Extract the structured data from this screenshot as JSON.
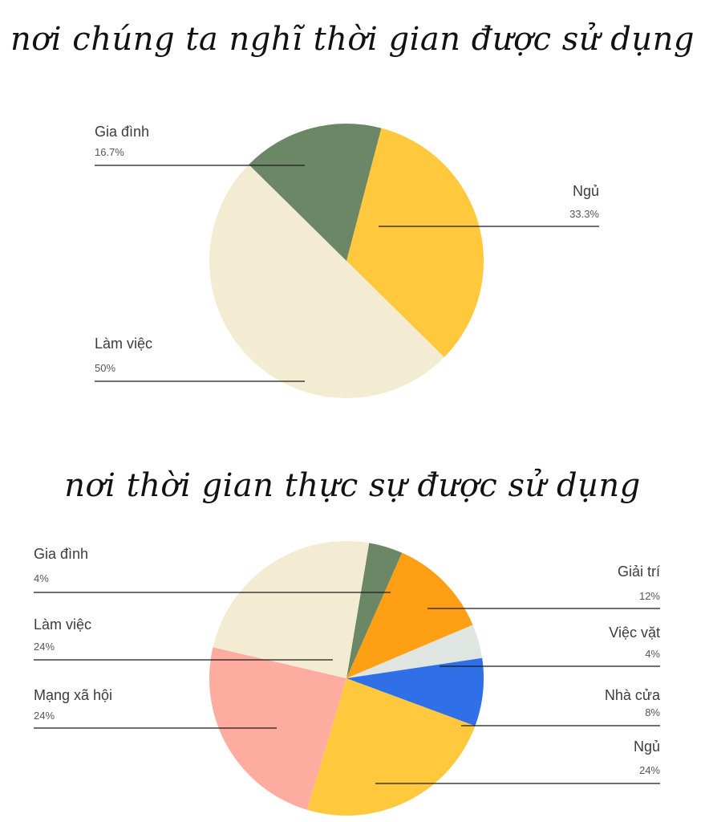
{
  "chart_data": [
    {
      "type": "pie",
      "title": "nơi chúng ta nghĩ thời gian được sử dụng",
      "slices": [
        {
          "label": "Ngủ",
          "value_label": "33.3%",
          "value": 33.3,
          "color": "#FFC83D"
        },
        {
          "label": "Làm việc",
          "value_label": "50%",
          "value": 50,
          "color": "#F4ECD2"
        },
        {
          "label": "Gia đình",
          "value_label": "16.7%",
          "value": 16.7,
          "color": "#6B8766"
        }
      ]
    },
    {
      "type": "pie",
      "title": "nơi thời gian thực sự được sử dụng",
      "slices": [
        {
          "label": "Gia đình",
          "value_label": "4%",
          "value": 4,
          "color": "#6B8766"
        },
        {
          "label": "Giải trí",
          "value_label": "12%",
          "value": 12,
          "color": "#FF9F14"
        },
        {
          "label": "Việc vặt",
          "value_label": "4%",
          "value": 4,
          "color": "#DFE6E1"
        },
        {
          "label": "Nhà cửa",
          "value_label": "8%",
          "value": 8,
          "color": "#2F6FE8"
        },
        {
          "label": "Ngủ",
          "value_label": "24%",
          "value": 24,
          "color": "#FFC83D"
        },
        {
          "label": "Mạng xã hội",
          "value_label": "24%",
          "value": 24,
          "color": "#FFACA0"
        },
        {
          "label": "Làm việc",
          "value_label": "24%",
          "value": 24,
          "color": "#F4ECD2"
        }
      ]
    }
  ]
}
